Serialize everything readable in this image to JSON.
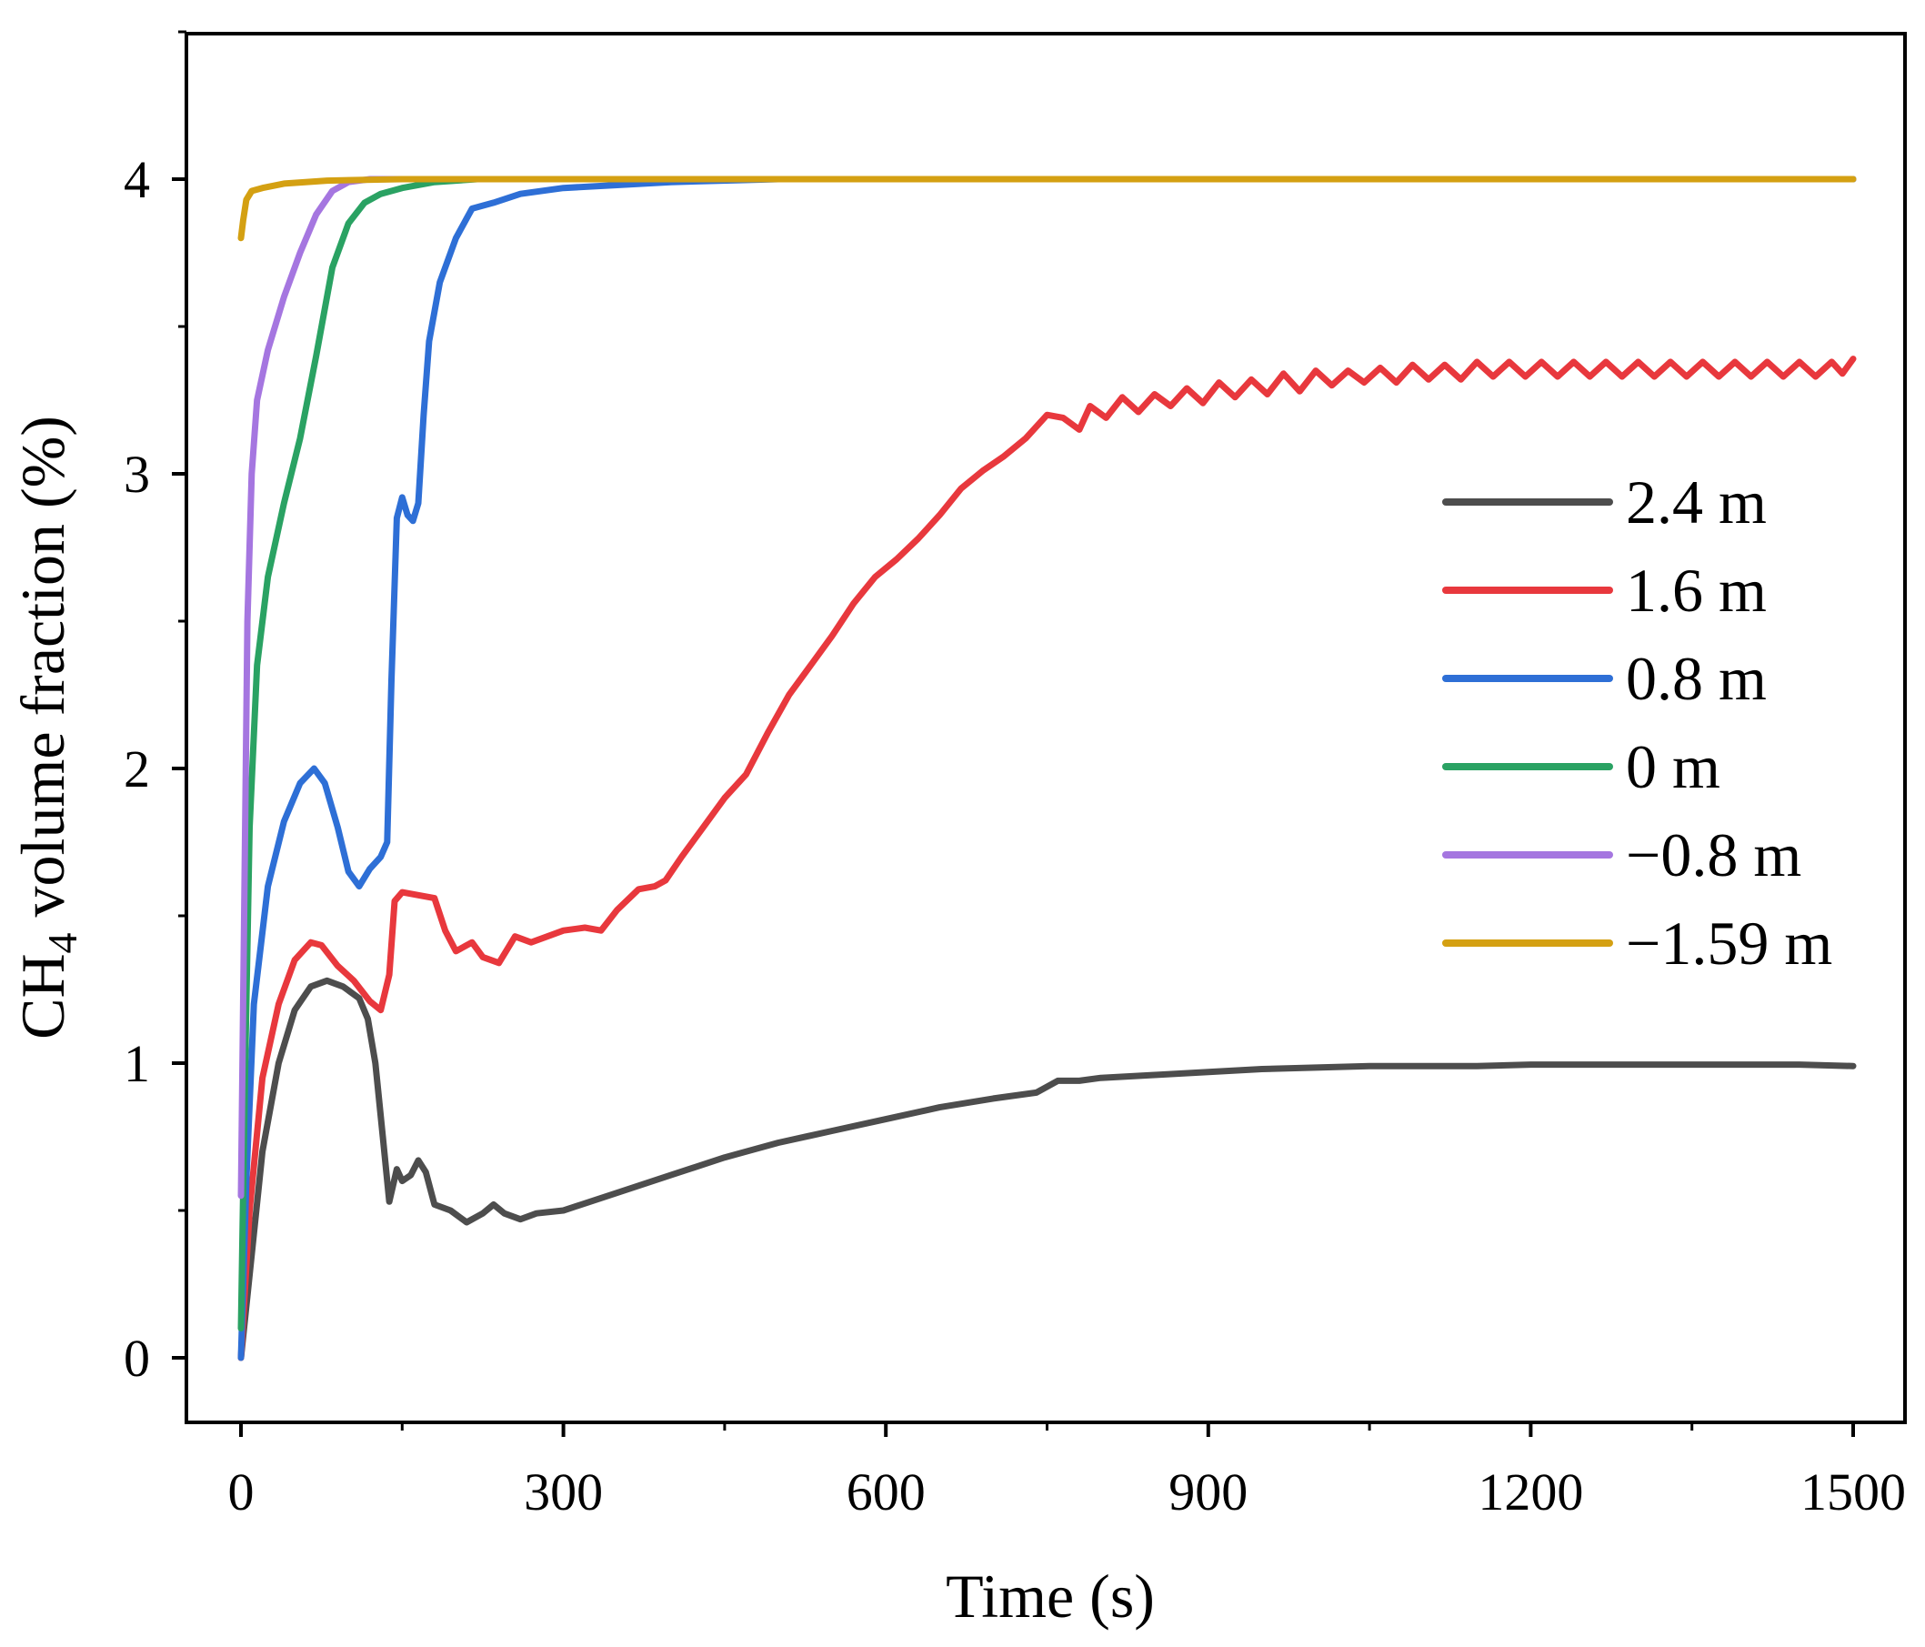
{
  "chart_data": {
    "type": "line",
    "title": "",
    "xlabel": "Time (s)",
    "ylabel_main": "CH",
    "ylabel_sub": "4",
    "ylabel_rest": " volume fraction (%)",
    "xlim": [
      -100,
      1560
    ],
    "ylim": [
      -0.2,
      4.7
    ],
    "xticks": [
      0,
      300,
      600,
      900,
      1200,
      1500
    ],
    "xtick_labels": [
      "0",
      "300",
      "600",
      "900",
      "1200",
      "1500"
    ],
    "yticks": [
      0,
      1,
      2,
      3,
      4
    ],
    "ytick_labels": [
      "0",
      "1",
      "2",
      "3",
      "4"
    ],
    "legend_position": "center-right",
    "series": [
      {
        "name": "2.4 m",
        "color": "#4d4d4d",
        "points": [
          [
            0,
            0
          ],
          [
            10,
            0.35
          ],
          [
            20,
            0.7
          ],
          [
            35,
            1.0
          ],
          [
            50,
            1.18
          ],
          [
            65,
            1.26
          ],
          [
            80,
            1.28
          ],
          [
            95,
            1.26
          ],
          [
            110,
            1.22
          ],
          [
            118,
            1.15
          ],
          [
            125,
            1.0
          ],
          [
            132,
            0.75
          ],
          [
            138,
            0.53
          ],
          [
            145,
            0.64
          ],
          [
            150,
            0.6
          ],
          [
            158,
            0.62
          ],
          [
            165,
            0.67
          ],
          [
            172,
            0.63
          ],
          [
            180,
            0.52
          ],
          [
            195,
            0.5
          ],
          [
            210,
            0.46
          ],
          [
            225,
            0.49
          ],
          [
            235,
            0.52
          ],
          [
            245,
            0.49
          ],
          [
            260,
            0.47
          ],
          [
            275,
            0.49
          ],
          [
            300,
            0.5
          ],
          [
            350,
            0.56
          ],
          [
            400,
            0.62
          ],
          [
            450,
            0.68
          ],
          [
            500,
            0.73
          ],
          [
            550,
            0.77
          ],
          [
            600,
            0.81
          ],
          [
            650,
            0.85
          ],
          [
            700,
            0.88
          ],
          [
            740,
            0.9
          ],
          [
            760,
            0.94
          ],
          [
            780,
            0.94
          ],
          [
            800,
            0.95
          ],
          [
            850,
            0.96
          ],
          [
            900,
            0.97
          ],
          [
            950,
            0.98
          ],
          [
            1000,
            0.985
          ],
          [
            1050,
            0.99
          ],
          [
            1100,
            0.99
          ],
          [
            1150,
            0.99
          ],
          [
            1200,
            0.995
          ],
          [
            1250,
            0.995
          ],
          [
            1300,
            0.995
          ],
          [
            1350,
            0.995
          ],
          [
            1400,
            0.995
          ],
          [
            1450,
            0.995
          ],
          [
            1500,
            0.99
          ]
        ]
      },
      {
        "name": "1.6 m",
        "color": "#e8383d",
        "points": [
          [
            0,
            0
          ],
          [
            8,
            0.5
          ],
          [
            20,
            0.95
          ],
          [
            35,
            1.2
          ],
          [
            50,
            1.35
          ],
          [
            65,
            1.41
          ],
          [
            75,
            1.4
          ],
          [
            90,
            1.33
          ],
          [
            105,
            1.28
          ],
          [
            120,
            1.21
          ],
          [
            130,
            1.18
          ],
          [
            138,
            1.3
          ],
          [
            143,
            1.55
          ],
          [
            150,
            1.58
          ],
          [
            165,
            1.57
          ],
          [
            180,
            1.56
          ],
          [
            190,
            1.45
          ],
          [
            200,
            1.38
          ],
          [
            215,
            1.41
          ],
          [
            225,
            1.36
          ],
          [
            240,
            1.34
          ],
          [
            255,
            1.43
          ],
          [
            270,
            1.41
          ],
          [
            285,
            1.43
          ],
          [
            300,
            1.45
          ],
          [
            320,
            1.46
          ],
          [
            335,
            1.45
          ],
          [
            350,
            1.52
          ],
          [
            370,
            1.59
          ],
          [
            385,
            1.6
          ],
          [
            395,
            1.62
          ],
          [
            410,
            1.7
          ],
          [
            430,
            1.8
          ],
          [
            450,
            1.9
          ],
          [
            470,
            1.98
          ],
          [
            490,
            2.12
          ],
          [
            510,
            2.25
          ],
          [
            530,
            2.35
          ],
          [
            550,
            2.45
          ],
          [
            570,
            2.56
          ],
          [
            590,
            2.65
          ],
          [
            610,
            2.71
          ],
          [
            630,
            2.78
          ],
          [
            650,
            2.86
          ],
          [
            670,
            2.95
          ],
          [
            690,
            3.01
          ],
          [
            710,
            3.06
          ],
          [
            730,
            3.12
          ],
          [
            750,
            3.2
          ],
          [
            765,
            3.19
          ],
          [
            780,
            3.15
          ],
          [
            790,
            3.23
          ],
          [
            805,
            3.19
          ],
          [
            820,
            3.26
          ],
          [
            835,
            3.21
          ],
          [
            850,
            3.27
          ],
          [
            865,
            3.23
          ],
          [
            880,
            3.29
          ],
          [
            895,
            3.24
          ],
          [
            910,
            3.31
          ],
          [
            925,
            3.26
          ],
          [
            940,
            3.32
          ],
          [
            955,
            3.27
          ],
          [
            970,
            3.34
          ],
          [
            985,
            3.28
          ],
          [
            1000,
            3.35
          ],
          [
            1015,
            3.3
          ],
          [
            1030,
            3.35
          ],
          [
            1045,
            3.31
          ],
          [
            1060,
            3.36
          ],
          [
            1075,
            3.31
          ],
          [
            1090,
            3.37
          ],
          [
            1105,
            3.32
          ],
          [
            1120,
            3.37
          ],
          [
            1135,
            3.32
          ],
          [
            1150,
            3.38
          ],
          [
            1165,
            3.33
          ],
          [
            1180,
            3.38
          ],
          [
            1195,
            3.33
          ],
          [
            1210,
            3.38
          ],
          [
            1225,
            3.33
          ],
          [
            1240,
            3.38
          ],
          [
            1255,
            3.33
          ],
          [
            1270,
            3.38
          ],
          [
            1285,
            3.33
          ],
          [
            1300,
            3.38
          ],
          [
            1315,
            3.33
          ],
          [
            1330,
            3.38
          ],
          [
            1345,
            3.33
          ],
          [
            1360,
            3.38
          ],
          [
            1375,
            3.33
          ],
          [
            1390,
            3.38
          ],
          [
            1405,
            3.33
          ],
          [
            1420,
            3.38
          ],
          [
            1435,
            3.33
          ],
          [
            1450,
            3.38
          ],
          [
            1465,
            3.33
          ],
          [
            1480,
            3.38
          ],
          [
            1490,
            3.34
          ],
          [
            1500,
            3.39
          ]
        ]
      },
      {
        "name": "0.8 m",
        "color": "#2e6fd6",
        "points": [
          [
            0,
            0
          ],
          [
            5,
            0.6
          ],
          [
            12,
            1.2
          ],
          [
            25,
            1.6
          ],
          [
            40,
            1.82
          ],
          [
            55,
            1.95
          ],
          [
            68,
            2.0
          ],
          [
            78,
            1.95
          ],
          [
            90,
            1.8
          ],
          [
            100,
            1.65
          ],
          [
            110,
            1.6
          ],
          [
            120,
            1.66
          ],
          [
            130,
            1.7
          ],
          [
            136,
            1.75
          ],
          [
            140,
            2.3
          ],
          [
            145,
            2.85
          ],
          [
            150,
            2.92
          ],
          [
            155,
            2.86
          ],
          [
            160,
            2.84
          ],
          [
            165,
            2.9
          ],
          [
            170,
            3.2
          ],
          [
            175,
            3.45
          ],
          [
            185,
            3.65
          ],
          [
            200,
            3.8
          ],
          [
            215,
            3.9
          ],
          [
            235,
            3.92
          ],
          [
            260,
            3.95
          ],
          [
            300,
            3.97
          ],
          [
            350,
            3.98
          ],
          [
            400,
            3.99
          ],
          [
            500,
            4.0
          ],
          [
            600,
            4.0
          ],
          [
            800,
            4.0
          ],
          [
            1000,
            4.0
          ],
          [
            1200,
            4.0
          ],
          [
            1500,
            4.0
          ]
        ]
      },
      {
        "name": "0 m",
        "color": "#2aa263",
        "points": [
          [
            0,
            0.1
          ],
          [
            4,
            1.0
          ],
          [
            8,
            1.8
          ],
          [
            15,
            2.35
          ],
          [
            25,
            2.65
          ],
          [
            40,
            2.9
          ],
          [
            55,
            3.12
          ],
          [
            70,
            3.4
          ],
          [
            85,
            3.7
          ],
          [
            100,
            3.85
          ],
          [
            115,
            3.92
          ],
          [
            130,
            3.95
          ],
          [
            150,
            3.97
          ],
          [
            180,
            3.99
          ],
          [
            220,
            4.0
          ],
          [
            300,
            4.0
          ],
          [
            600,
            4.0
          ],
          [
            1000,
            4.0
          ],
          [
            1500,
            4.0
          ]
        ]
      },
      {
        "name": "−0.8 m",
        "color": "#a576e0",
        "points": [
          [
            0,
            0.55
          ],
          [
            3,
            1.5
          ],
          [
            6,
            2.5
          ],
          [
            10,
            3.0
          ],
          [
            15,
            3.25
          ],
          [
            25,
            3.42
          ],
          [
            40,
            3.6
          ],
          [
            55,
            3.75
          ],
          [
            70,
            3.88
          ],
          [
            85,
            3.96
          ],
          [
            100,
            3.99
          ],
          [
            120,
            4.0
          ],
          [
            200,
            4.0
          ],
          [
            500,
            4.0
          ],
          [
            1000,
            4.0
          ],
          [
            1500,
            4.0
          ]
        ]
      },
      {
        "name": "−1.59 m",
        "color": "#d4a012",
        "points": [
          [
            0,
            3.8
          ],
          [
            2,
            3.86
          ],
          [
            5,
            3.93
          ],
          [
            10,
            3.96
          ],
          [
            20,
            3.97
          ],
          [
            40,
            3.985
          ],
          [
            80,
            3.995
          ],
          [
            150,
            4.0
          ],
          [
            300,
            4.0
          ],
          [
            600,
            4.0
          ],
          [
            1000,
            4.0
          ],
          [
            1500,
            4.0
          ]
        ]
      }
    ]
  }
}
